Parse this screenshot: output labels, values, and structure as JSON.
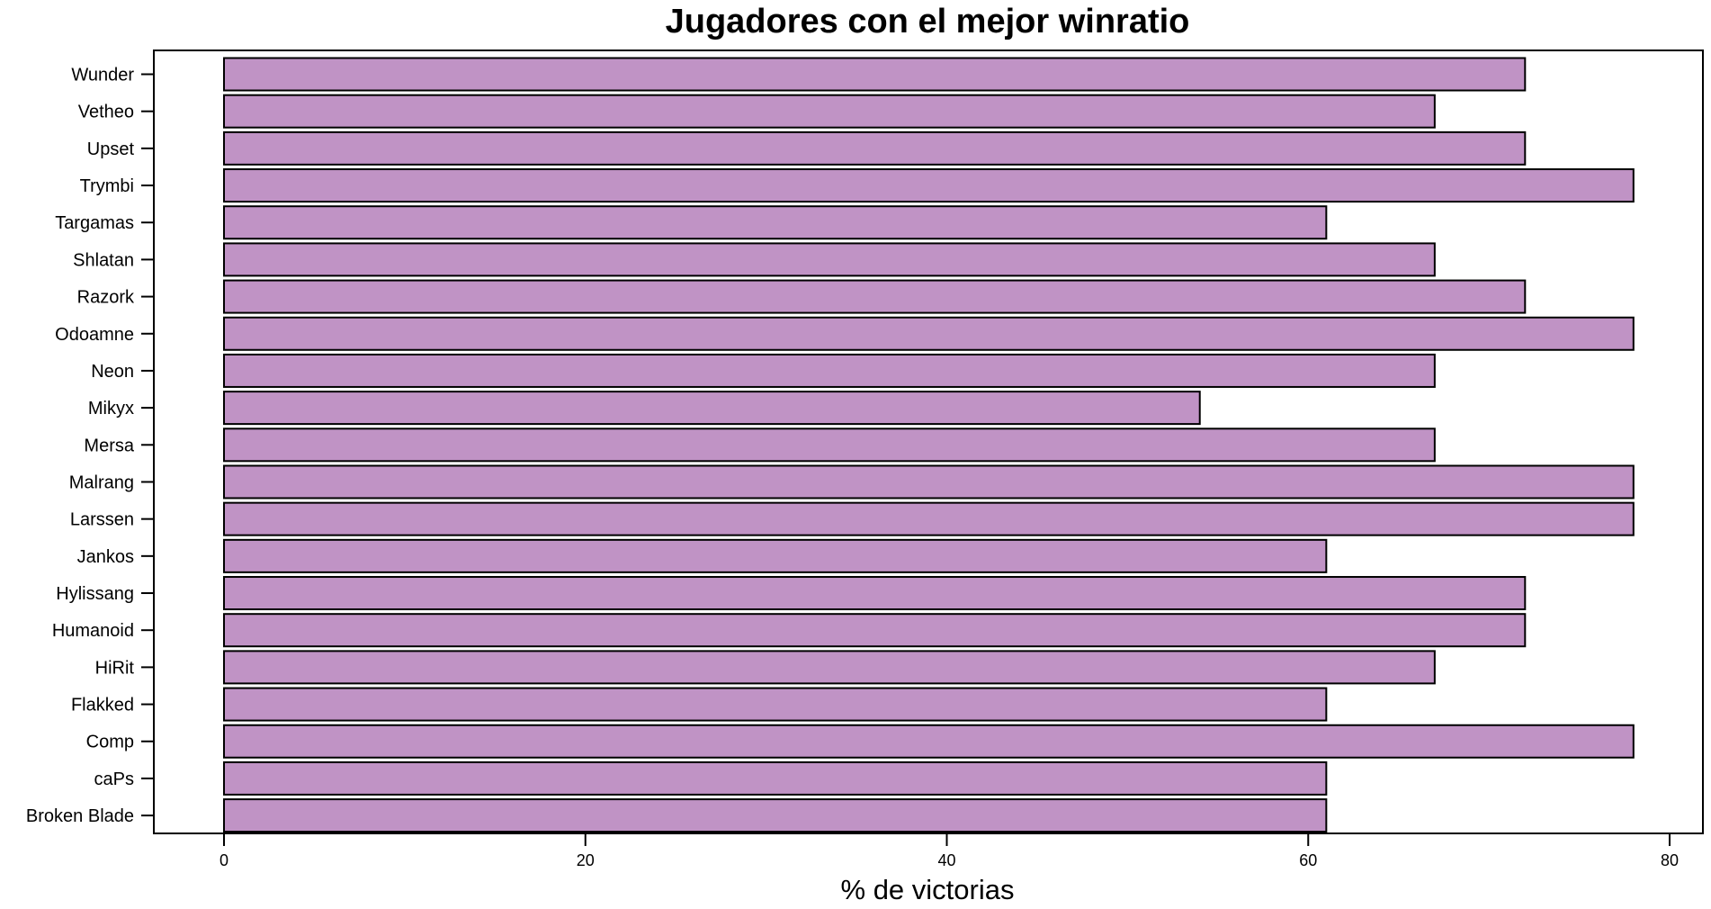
{
  "chart_data": {
    "type": "bar",
    "orientation": "horizontal",
    "title": "Jugadores con el mejor winratio",
    "xlabel": "% de victorias",
    "ylabel": "",
    "xlim": [
      0,
      80
    ],
    "xticks": [
      0,
      20,
      40,
      60,
      80
    ],
    "bar_color": "#c093c5",
    "bar_stroke": "#000000",
    "grid": false,
    "categories": [
      "Broken Blade",
      "caPs",
      "Comp",
      "Flakked",
      "HiRit",
      "Humanoid",
      "Hylissang",
      "Jankos",
      "Larssen",
      "Malrang",
      "Mersa",
      "Mikyx",
      "Neon",
      "Odoamne",
      "Razork",
      "Shlatan",
      "Targamas",
      "Trymbi",
      "Upset",
      "Vetheo",
      "Wunder"
    ],
    "values": [
      61,
      61,
      78,
      61,
      67,
      72,
      72,
      61,
      78,
      78,
      67,
      54,
      67,
      78,
      72,
      67,
      61,
      78,
      72,
      67,
      72
    ]
  }
}
